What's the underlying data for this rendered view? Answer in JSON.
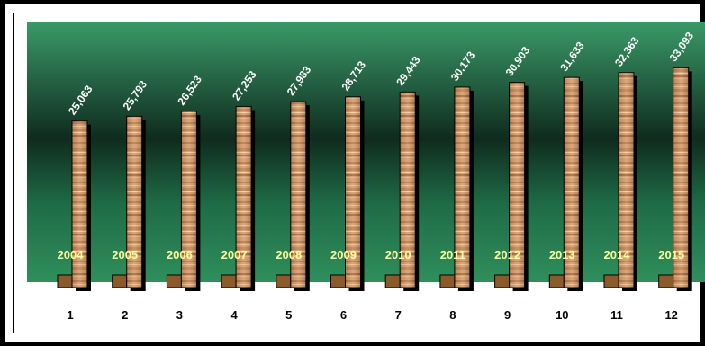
{
  "chart_data": {
    "type": "bar",
    "categories": [
      "1",
      "2",
      "3",
      "4",
      "5",
      "6",
      "7",
      "8",
      "9",
      "10",
      "11",
      "12"
    ],
    "years": [
      "2004",
      "2005",
      "2006",
      "2007",
      "2008",
      "2009",
      "2010",
      "2011",
      "2012",
      "2013",
      "2014",
      "2015"
    ],
    "values": [
      25063,
      25793,
      26523,
      27253,
      27983,
      28713,
      29443,
      30173,
      30903,
      31633,
      32363,
      33093
    ],
    "value_labels": [
      "25,063",
      "25,793",
      "26,523",
      "27,253",
      "27,983",
      "28,713",
      "29,443",
      "30,173",
      "30,903",
      "31,633",
      "32,363",
      "33,093"
    ],
    "title": "",
    "xlabel": "",
    "ylabel": "",
    "ylim": [
      0,
      34500
    ],
    "grid": false,
    "legend": "none"
  },
  "colors": {
    "background_edge": "#2e8b57",
    "background_center": "#0f2b1e",
    "bar_wood_light": "#e0a878",
    "bar_wood_dark": "#b0703c",
    "bar_outline": "#000000",
    "year_label": "#ffff99",
    "value_label": "#ffffff",
    "category_label": "#000000"
  }
}
